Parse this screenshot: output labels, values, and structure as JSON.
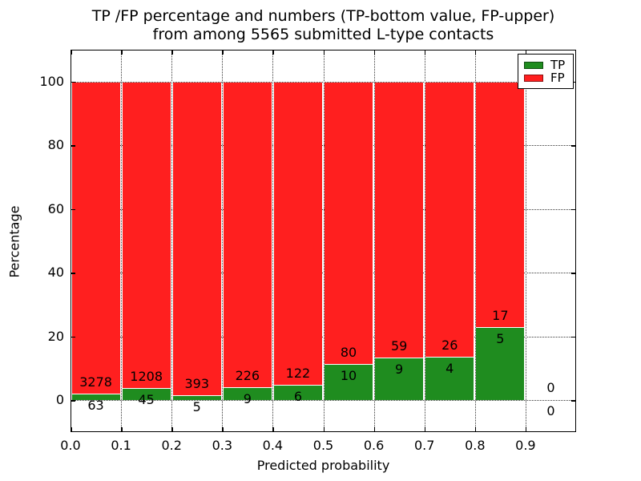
{
  "chart_data": {
    "type": "bar",
    "stacked": true,
    "title_lines": [
      "TP /FP percentage and numbers (TP-bottom value, FP-upper)",
      "from among 5565 submitted L-type contacts"
    ],
    "xlabel": "Predicted probability",
    "ylabel": "Percentage",
    "total_contacts": 5565,
    "bin_starts": [
      0.0,
      0.1,
      0.2,
      0.3,
      0.4,
      0.5,
      0.6,
      0.7,
      0.8,
      0.9
    ],
    "bin_width": 0.1,
    "x_tick_labels": [
      "0.0",
      "0.1",
      "0.2",
      "0.3",
      "0.4",
      "0.5",
      "0.6",
      "0.7",
      "0.8",
      "0.9"
    ],
    "x_tick_values": [
      0.0,
      0.1,
      0.2,
      0.3,
      0.4,
      0.5,
      0.6,
      0.7,
      0.8,
      0.9
    ],
    "y_tick_values": [
      0,
      20,
      40,
      60,
      80,
      100
    ],
    "xlim": [
      0.0,
      1.0
    ],
    "ylim": [
      -10,
      110
    ],
    "grid": true,
    "grid_style": "dotted",
    "legend_position": "upper right",
    "series": [
      {
        "name": "TP",
        "color": "#1f8c1f",
        "counts": [
          63,
          45,
          5,
          9,
          6,
          10,
          9,
          4,
          5,
          0
        ]
      },
      {
        "name": "FP",
        "color": "#ff1f1f",
        "counts": [
          3278,
          1208,
          393,
          226,
          122,
          80,
          59,
          26,
          17,
          0
        ]
      }
    ],
    "tp_percentages": [
      1.89,
      3.59,
      1.26,
      3.83,
      4.69,
      11.11,
      13.24,
      13.33,
      22.73,
      0.0
    ],
    "legend": [
      {
        "label": "TP",
        "color": "#1f8c1f"
      },
      {
        "label": "FP",
        "color": "#ff1f1f"
      }
    ]
  }
}
